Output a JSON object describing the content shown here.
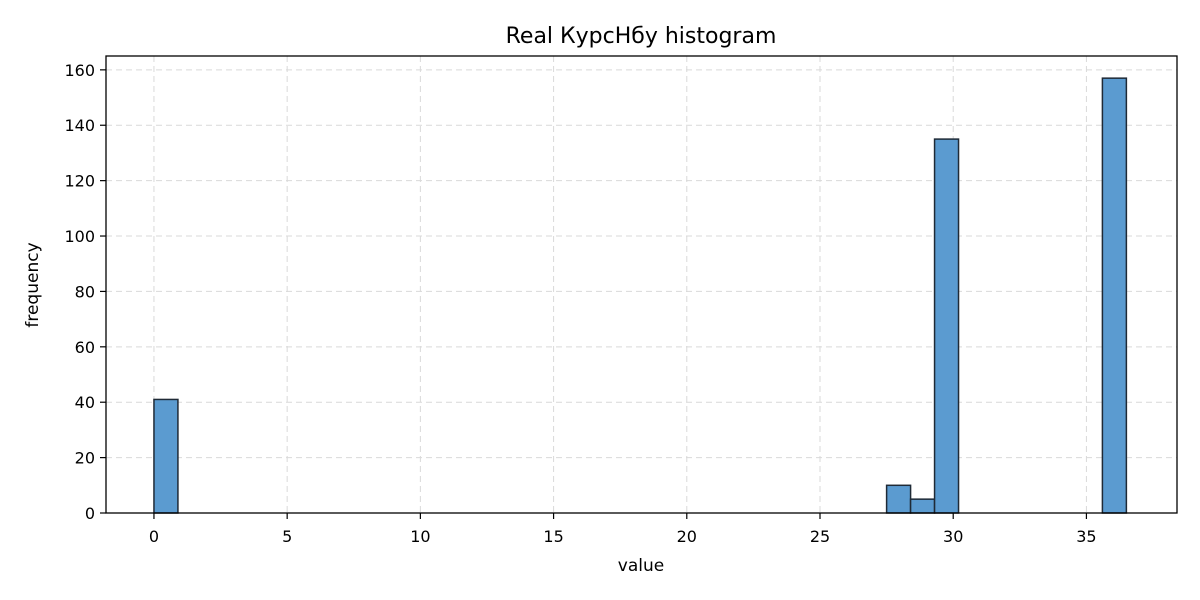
{
  "chart_data": {
    "type": "bar",
    "title": "Real КурсНбу histogram",
    "xlabel": "value",
    "ylabel": "frequency",
    "xlim": [
      -1.8,
      38.4
    ],
    "ylim": [
      0,
      165
    ],
    "xticks": [
      0,
      5,
      10,
      15,
      20,
      25,
      30,
      35
    ],
    "yticks": [
      0,
      20,
      40,
      60,
      80,
      100,
      120,
      140,
      160
    ],
    "grid": true,
    "bar_color": "#5b9bd0",
    "edge_color": "#1f2a36",
    "bins": [
      {
        "x0": 0.0,
        "x1": 0.9,
        "count": 41
      },
      {
        "x0": 27.5,
        "x1": 28.4,
        "count": 10
      },
      {
        "x0": 28.4,
        "x1": 29.3,
        "count": 5
      },
      {
        "x0": 29.3,
        "x1": 30.2,
        "count": 135
      },
      {
        "x0": 35.6,
        "x1": 36.5,
        "count": 157
      }
    ]
  }
}
